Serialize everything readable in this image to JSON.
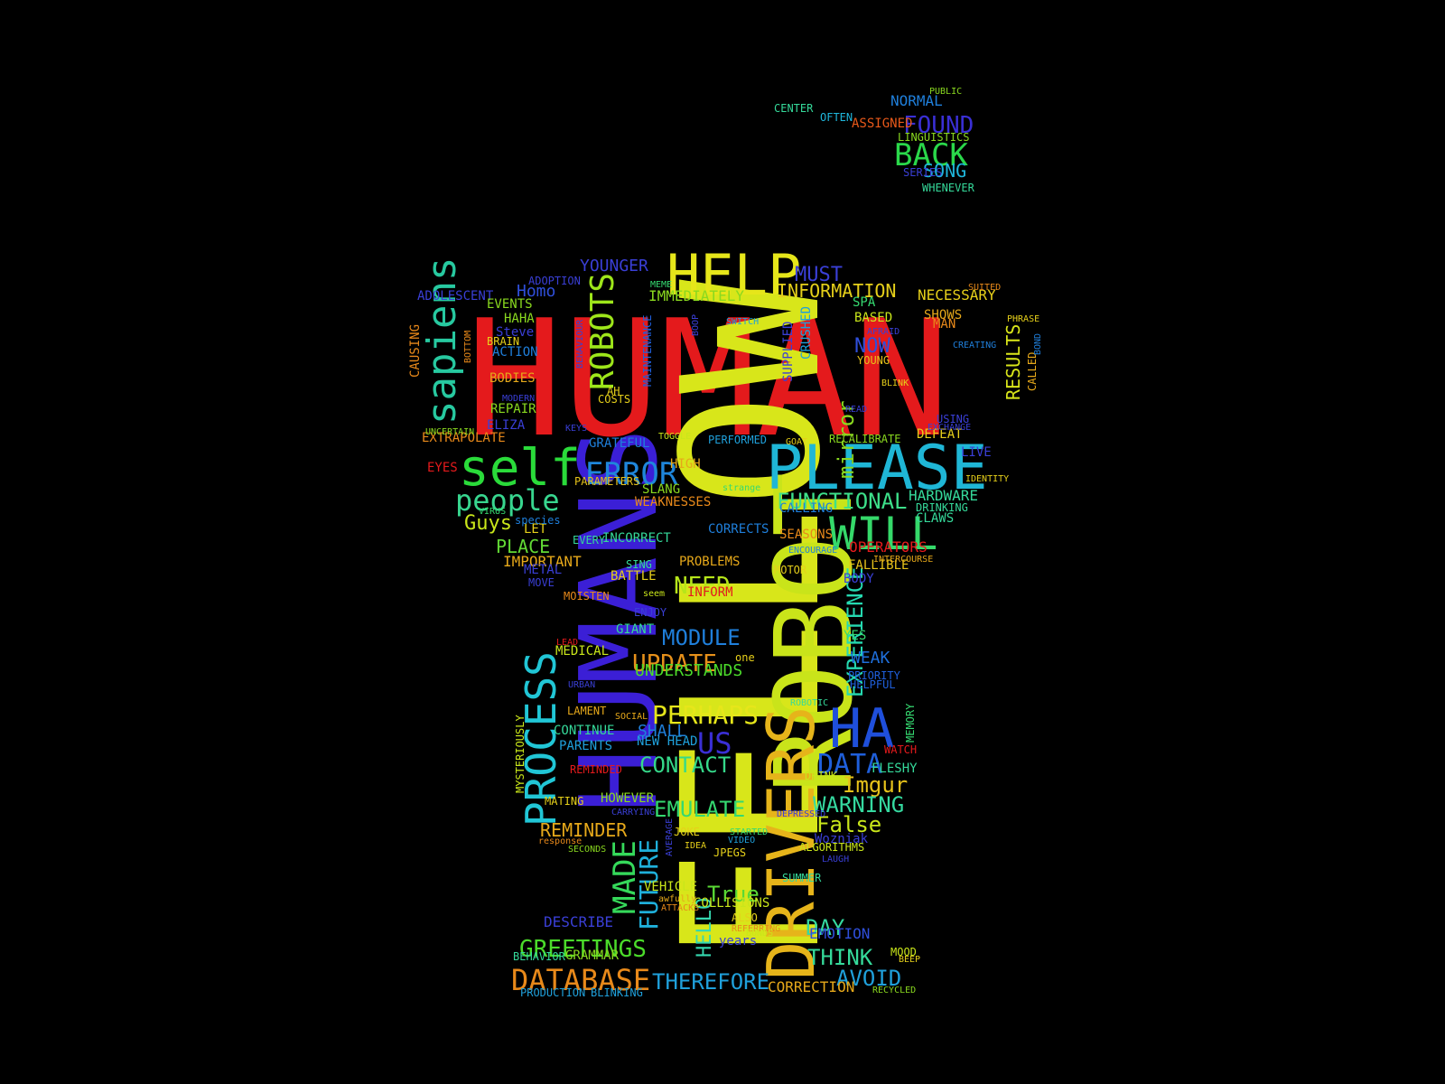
{
  "background": "#000000",
  "words": [
    {
      "text": "HUMAN",
      "color": "#e41a1c"
    },
    {
      "text": "FELLOW",
      "color": "#d8e61a"
    },
    {
      "text": "HUMANS",
      "color": "#3b1fd6"
    },
    {
      "text": "ROBOT",
      "color": "#c9e41a"
    },
    {
      "text": "PLEASE",
      "color": "#1fb6d6"
    },
    {
      "text": "DRIVERS",
      "color": "#e6b41a"
    },
    {
      "text": "HELP",
      "color": "#e6e61a"
    },
    {
      "text": "self",
      "color": "#2adb3a"
    },
    {
      "text": "PROCESS",
      "color": "#21c6d6"
    },
    {
      "text": "WILL",
      "color": "#35d96a"
    },
    {
      "text": "HA",
      "color": "#1f4fdb"
    },
    {
      "text": "sapiens",
      "color": "#27c9a0"
    },
    {
      "text": "ROBOTS",
      "color": "#9ee61a"
    },
    {
      "text": "DATABASE",
      "color": "#e8891a"
    },
    {
      "text": "ERROR",
      "color": "#1f86db"
    },
    {
      "text": "people",
      "color": "#38d68f"
    },
    {
      "text": "EXPERIENCE",
      "color": "#25d9b0"
    },
    {
      "text": "BACK",
      "color": "#2ad84a"
    },
    {
      "text": "FOUND",
      "color": "#3a2fd6"
    },
    {
      "text": "GREETINGS",
      "color": "#4bdb2a"
    },
    {
      "text": "FUNCTIONAL",
      "color": "#3de08a"
    },
    {
      "text": "MADE",
      "color": "#35d95a"
    },
    {
      "text": "FUTURE",
      "color": "#1fb0db"
    },
    {
      "text": "mirror",
      "color": "#8ad91f"
    },
    {
      "text": "PERHAPS",
      "color": "#e6e61a"
    },
    {
      "text": "MODULE",
      "color": "#1f7fdb"
    },
    {
      "text": "UPDATE",
      "color": "#e6901a"
    },
    {
      "text": "NEED",
      "color": "#b6e61a"
    },
    {
      "text": "EMULATE",
      "color": "#35d970"
    },
    {
      "text": "CONTACT",
      "color": "#35d98a"
    },
    {
      "text": "US",
      "color": "#3a2fd6"
    },
    {
      "text": "DATA",
      "color": "#1f5fdb"
    },
    {
      "text": "Imgur",
      "color": "#e6c21a"
    },
    {
      "text": "WARNING",
      "color": "#35d9a0"
    },
    {
      "text": "False",
      "color": "#c9e61a"
    },
    {
      "text": "THINK",
      "color": "#35d99a"
    },
    {
      "text": "AVOID",
      "color": "#1fa0db"
    },
    {
      "text": "THEREFORE",
      "color": "#1fa0db"
    },
    {
      "text": "DAY",
      "color": "#35d9a0"
    },
    {
      "text": "True",
      "color": "#5ad935"
    },
    {
      "text": "REMINDER",
      "color": "#e6a81a"
    },
    {
      "text": "PLACE",
      "color": "#62d935"
    },
    {
      "text": "Guys",
      "color": "#c9e61a"
    },
    {
      "text": "IMPORTANT",
      "color": "#e6a81a"
    },
    {
      "text": "HELLO",
      "color": "#35d9b0"
    },
    {
      "text": "Homo",
      "color": "#2f4fdb"
    },
    {
      "text": "YOUNGER",
      "color": "#3a3fd6"
    },
    {
      "text": "MUST",
      "color": "#3a3fd6"
    },
    {
      "text": "INFORMATION",
      "color": "#e6d01a"
    },
    {
      "text": "IMMEDIATELY",
      "color": "#8ad91f"
    },
    {
      "text": "NOW",
      "color": "#2f4fdb"
    },
    {
      "text": "NECESSARY",
      "color": "#e6d01a"
    },
    {
      "text": "RESULTS",
      "color": "#d9e61a"
    },
    {
      "text": "HARDWARE",
      "color": "#35d99a"
    },
    {
      "text": "WEAK",
      "color": "#1f6fdb"
    },
    {
      "text": "CORRECTION",
      "color": "#e6a81a"
    },
    {
      "text": "EMOTION",
      "color": "#2f4fdb"
    },
    {
      "text": "DESCRIBE",
      "color": "#3a3fd6"
    },
    {
      "text": "SHALL",
      "color": "#1f7fdb"
    },
    {
      "text": "SONG",
      "color": "#1fb6db"
    },
    {
      "text": "NORMAL",
      "color": "#1f7fdb"
    },
    {
      "text": "UNDERSTANDS",
      "color": "#4bdb2a"
    },
    {
      "text": "OPERATORS",
      "color": "#e41a1c"
    },
    {
      "text": "Wozniak",
      "color": "#3a3fd6"
    },
    {
      "text": "CLAWS",
      "color": "#35d99a"
    },
    {
      "text": "CALLING",
      "color": "#1f7fdb"
    },
    {
      "text": "CORRECTS",
      "color": "#1f7fdb"
    },
    {
      "text": "INCORRECT",
      "color": "#35d99a"
    },
    {
      "text": "GRATEFUL",
      "color": "#1f7fdb"
    },
    {
      "text": "EXTRAPOLATE",
      "color": "#e8891a"
    },
    {
      "text": "ELIZA",
      "color": "#3a3fd6"
    },
    {
      "text": "ADOLESCENT",
      "color": "#3a3fd6"
    },
    {
      "text": "ADOPTION",
      "color": "#3a3fd6"
    },
    {
      "text": "EVENTS",
      "color": "#8ad91f"
    },
    {
      "text": "CAUSING",
      "color": "#e8891a"
    },
    {
      "text": "MYSTERIOUSLY",
      "color": "#c9e61a"
    },
    {
      "text": "CONTINUE",
      "color": "#35d99a"
    },
    {
      "text": "PARENTS",
      "color": "#1fa0db"
    },
    {
      "text": "NEW HEAD",
      "color": "#1fa0db"
    },
    {
      "text": "GIANT",
      "color": "#35d99a"
    },
    {
      "text": "MEDICAL",
      "color": "#c9e61a"
    },
    {
      "text": "HOWEVER",
      "color": "#8ad91f"
    },
    {
      "text": "COLLISIONS",
      "color": "#c9e61a"
    },
    {
      "text": "VEHICLE",
      "color": "#c9e61a"
    },
    {
      "text": "ALGORITHMS",
      "color": "#c9e61a"
    },
    {
      "text": "SUMMER",
      "color": "#35d99a"
    },
    {
      "text": "FALLIBLE",
      "color": "#e6c21a"
    },
    {
      "text": "BODY",
      "color": "#3a3fd6"
    },
    {
      "text": "PRIORITY",
      "color": "#1f5fdb"
    },
    {
      "text": "HELPFUL",
      "color": "#1f5fdb"
    },
    {
      "text": "FLESHY",
      "color": "#35d99a"
    },
    {
      "text": "DRINK",
      "color": "#c9e61a"
    },
    {
      "text": "WATCH",
      "color": "#e41a1c"
    },
    {
      "text": "MEMORY",
      "color": "#35d970"
    },
    {
      "text": "YES",
      "color": "#35d970"
    },
    {
      "text": "SEASONS",
      "color": "#e8891a"
    },
    {
      "text": "DEFEAT",
      "color": "#e6d01a"
    },
    {
      "text": "RECALIBRATE",
      "color": "#8ad91f"
    },
    {
      "text": "LIVE",
      "color": "#3a3fd6"
    },
    {
      "text": "DRINKING",
      "color": "#35d99a"
    },
    {
      "text": "BASED",
      "color": "#c9e61a"
    },
    {
      "text": "SHOWS",
      "color": "#e6a81a"
    },
    {
      "text": "MAN",
      "color": "#e8891a"
    },
    {
      "text": "SPA",
      "color": "#35d970"
    },
    {
      "text": "YOUNG",
      "color": "#e6c21a"
    },
    {
      "text": "SUPPLIED",
      "color": "#3a3fd6"
    },
    {
      "text": "CRUSHED",
      "color": "#1fa0db"
    },
    {
      "text": "PERFORMED",
      "color": "#1fa0db"
    },
    {
      "text": "HIGH",
      "color": "#e6a81a"
    },
    {
      "text": "SLANG",
      "color": "#8ad91f"
    },
    {
      "text": "WEAKNESSES",
      "color": "#e8891a"
    },
    {
      "text": "PARAMETERS",
      "color": "#e6c21a"
    },
    {
      "text": "BODIES",
      "color": "#e6a81a"
    },
    {
      "text": "REPAIR",
      "color": "#8ad91f"
    },
    {
      "text": "COSTS",
      "color": "#e6d01a"
    },
    {
      "text": "BRAIN",
      "color": "#e6d01a"
    },
    {
      "text": "ACTION",
      "color": "#1f7fdb"
    },
    {
      "text": "HAHA",
      "color": "#8ad91f"
    },
    {
      "text": "Steve",
      "color": "#3a3fd6"
    },
    {
      "text": "EYES",
      "color": "#e41a1c"
    },
    {
      "text": "LET",
      "color": "#e6d01a"
    },
    {
      "text": "EVERY",
      "color": "#35d99a"
    },
    {
      "text": "species",
      "color": "#1f7fdb"
    },
    {
      "text": "MOVE",
      "color": "#3a3fd6"
    },
    {
      "text": "METAL",
      "color": "#3a3fd6"
    },
    {
      "text": "SING",
      "color": "#35d99a"
    },
    {
      "text": "BATTLE",
      "color": "#e6d01a"
    },
    {
      "text": "PROBLEMS",
      "color": "#e6a81a"
    },
    {
      "text": "INFORM",
      "color": "#e41a1c"
    },
    {
      "text": "MOTOR",
      "color": "#e6d01a"
    },
    {
      "text": "MOISTEN",
      "color": "#e8891a"
    },
    {
      "text": "ENJOY",
      "color": "#3a3fd6"
    },
    {
      "text": "LAMENT",
      "color": "#e6a81a"
    },
    {
      "text": "REMINDED",
      "color": "#e41a1c"
    },
    {
      "text": "MATING",
      "color": "#e6d01a"
    },
    {
      "text": "JOKE",
      "color": "#e6d01a"
    },
    {
      "text": "JPEGS",
      "color": "#e6d01a"
    },
    {
      "text": "ALSO",
      "color": "#e6d01a"
    },
    {
      "text": "years",
      "color": "#3a3fd6"
    },
    {
      "text": "REFERRING",
      "color": "#e8891a"
    },
    {
      "text": "PRODUCTION",
      "color": "#1fa0db"
    },
    {
      "text": "BLINKING",
      "color": "#1fa0db"
    },
    {
      "text": "BEHAVIOR",
      "color": "#35d99a"
    },
    {
      "text": "GRAMMAR",
      "color": "#8ad91f"
    },
    {
      "text": "CENTER",
      "color": "#35d99a"
    },
    {
      "text": "OFTEN",
      "color": "#1fb6db"
    },
    {
      "text": "ASSIGNED",
      "color": "#e8591a"
    },
    {
      "text": "LINGUISTICS",
      "color": "#8ad91f"
    },
    {
      "text": "SERIES",
      "color": "#3a3fd6"
    },
    {
      "text": "WHENEVER",
      "color": "#35d99a"
    },
    {
      "text": "PUBLIC",
      "color": "#8ad91f"
    },
    {
      "text": "SUITED",
      "color": "#e8891a"
    },
    {
      "text": "PHRASE",
      "color": "#e6d01a"
    },
    {
      "text": "MEME",
      "color": "#35d970"
    },
    {
      "text": "SWITCH",
      "color": "#1fa0db"
    },
    {
      "text": "BOOP",
      "color": "#3a3fd6"
    },
    {
      "text": "MAINTENANCE",
      "color": "#1f5fdb"
    },
    {
      "text": "BEHAVIOUR",
      "color": "#3a3fd6"
    },
    {
      "text": "BOTTOM",
      "color": "#e8891a"
    },
    {
      "text": "AH",
      "color": "#e6d01a"
    },
    {
      "text": "MODERN",
      "color": "#3a3fd6"
    },
    {
      "text": "UNCERTAIN",
      "color": "#8ad91f"
    },
    {
      "text": "KEYS",
      "color": "#3a3fd6"
    },
    {
      "text": "TOGGLE",
      "color": "#c9e61a"
    },
    {
      "text": "GOAT",
      "color": "#e6d01a"
    },
    {
      "text": "VIRUS",
      "color": "#35d970"
    },
    {
      "text": "strange",
      "color": "#35d970"
    },
    {
      "text": "ENCOURAGE",
      "color": "#1f7fdb"
    },
    {
      "text": "INTERCOURSE",
      "color": "#e6a81a"
    },
    {
      "text": "seem",
      "color": "#c9e61a"
    },
    {
      "text": "LEAD",
      "color": "#e41a1c"
    },
    {
      "text": "URBAN",
      "color": "#3a3fd6"
    },
    {
      "text": "one",
      "color": "#e6d01a"
    },
    {
      "text": "SOCIAL",
      "color": "#e6a81a"
    },
    {
      "text": "ROBOTIC",
      "color": "#35d99a"
    },
    {
      "text": "response",
      "color": "#e8891a"
    },
    {
      "text": "SECONDS",
      "color": "#8ad91f"
    },
    {
      "text": "CARRYING",
      "color": "#3a3fd6"
    },
    {
      "text": "AVERAGE",
      "color": "#3a3fd6"
    },
    {
      "text": "IDEA",
      "color": "#e6d01a"
    },
    {
      "text": "STARTED",
      "color": "#35d970"
    },
    {
      "text": "VIDEO",
      "color": "#1fa0db"
    },
    {
      "text": "DEPRESSED",
      "color": "#3a3fd6"
    },
    {
      "text": "LAUGH",
      "color": "#3a3fd6"
    },
    {
      "text": "awfully",
      "color": "#e6a81a"
    },
    {
      "text": "ATTACKS",
      "color": "#e8891a"
    },
    {
      "text": "BONDS",
      "color": "#c9e61a"
    },
    {
      "text": "MOOD",
      "color": "#c9e61a"
    },
    {
      "text": "BEEP",
      "color": "#e6d01a"
    },
    {
      "text": "RECYCLED",
      "color": "#8ad91f"
    },
    {
      "text": "BLINK",
      "color": "#e6d01a"
    },
    {
      "text": "READ",
      "color": "#3a3fd6"
    },
    {
      "text": "AFRAID",
      "color": "#3a3fd6"
    },
    {
      "text": "CREATING",
      "color": "#1f7fdb"
    },
    {
      "text": "USING",
      "color": "#3a3fd6"
    },
    {
      "text": "EXCHANGE",
      "color": "#3a3fd6"
    },
    {
      "text": "IDENTITY",
      "color": "#e6d01a"
    },
    {
      "text": "CALLED",
      "color": "#e6a81a"
    },
    {
      "text": "BOND",
      "color": "#1f7fdb"
    }
  ]
}
